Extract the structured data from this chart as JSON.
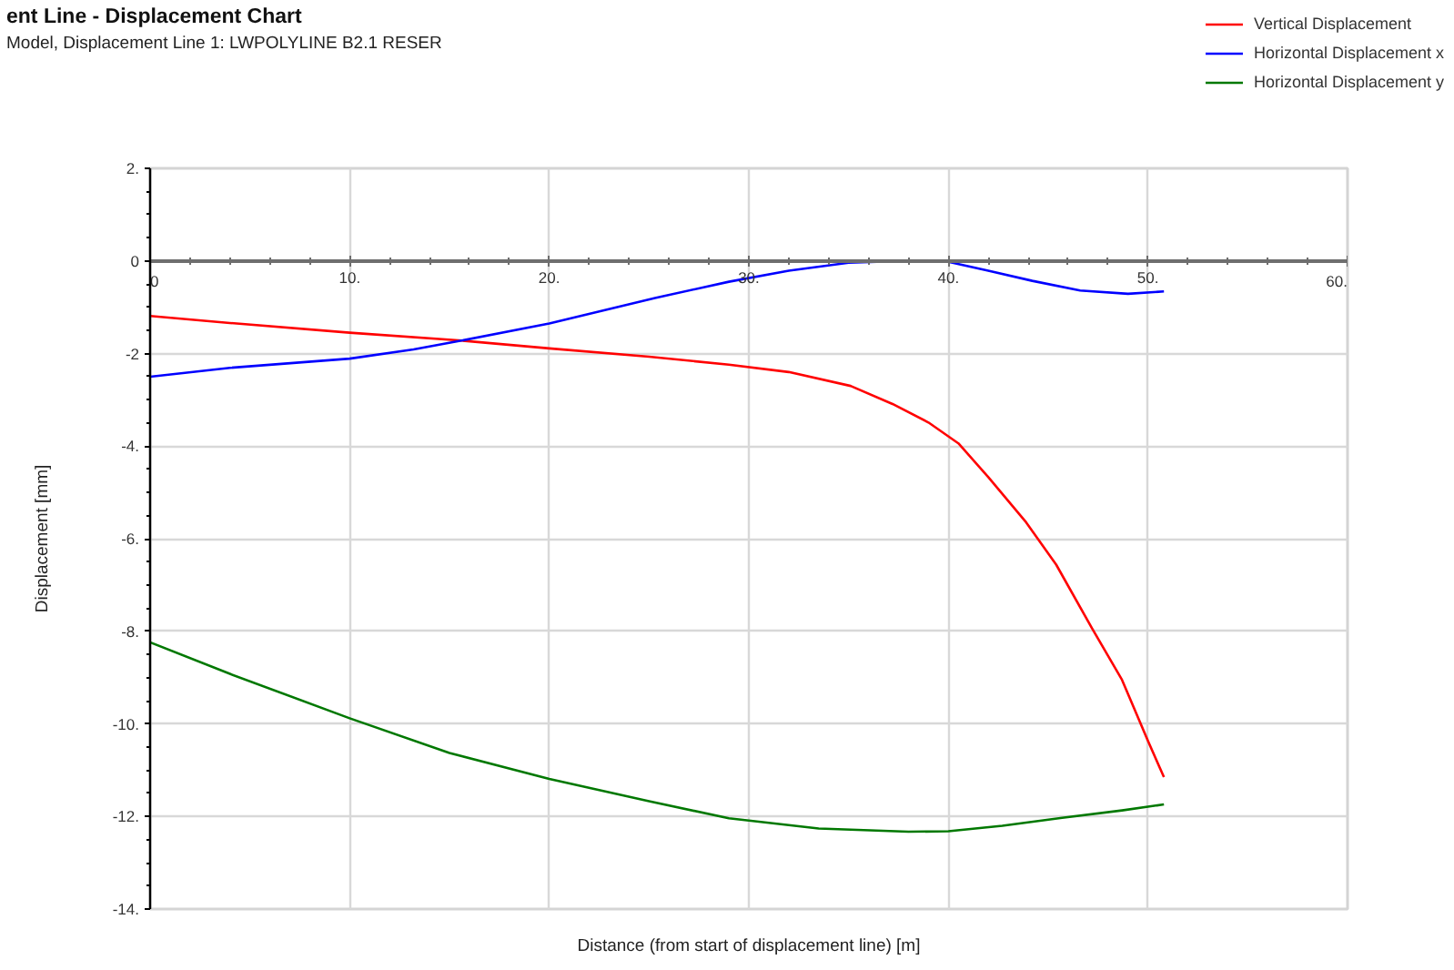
{
  "chart_data": {
    "type": "line",
    "title": "ent Line - Displacement Chart",
    "subtitle": "Model, Displacement Line 1: LWPOLYLINE B2.1 RESER",
    "xlabel": "Distance (from start of displacement line) [m]",
    "ylabel": "Displacement [mm]",
    "xlim": [
      0,
      60
    ],
    "ylim": [
      -14,
      2
    ],
    "xticks": [
      0,
      {
        "value": 2,
        "label": null
      },
      {
        "value": 4,
        "label": null
      },
      {
        "value": 6,
        "label": null
      },
      {
        "value": 8,
        "label": null
      },
      {
        "value": 10,
        "label": "10."
      },
      {
        "value": 12,
        "label": null
      },
      {
        "value": 14,
        "label": null
      },
      {
        "value": 16,
        "label": null
      },
      {
        "value": 18,
        "label": null
      },
      {
        "value": 20,
        "label": "20."
      },
      {
        "value": 22,
        "label": null
      },
      {
        "value": 24,
        "label": null
      },
      {
        "value": 26,
        "label": null
      },
      {
        "value": 28,
        "label": null
      },
      {
        "value": 30,
        "label": "30."
      },
      {
        "value": 32,
        "label": null
      },
      {
        "value": 34,
        "label": null
      },
      {
        "value": 36,
        "label": null
      },
      {
        "value": 38,
        "label": null
      },
      {
        "value": 40,
        "label": "40."
      },
      {
        "value": 42,
        "label": null
      },
      {
        "value": 44,
        "label": null
      },
      {
        "value": 46,
        "label": null
      },
      {
        "value": 48,
        "label": null
      },
      {
        "value": 50,
        "label": "50."
      },
      {
        "value": 52,
        "label": null
      },
      {
        "value": 54,
        "label": null
      },
      {
        "value": 56,
        "label": null
      },
      {
        "value": 58,
        "label": null
      },
      {
        "value": 60,
        "label": "60."
      }
    ],
    "yticks": [
      {
        "value": -14,
        "label": "-14."
      },
      {
        "value": -13.5,
        "label": null
      },
      {
        "value": -13,
        "label": null
      },
      {
        "value": -12.5,
        "label": null
      },
      {
        "value": -12,
        "label": "-12."
      },
      {
        "value": -11.5,
        "label": null
      },
      {
        "value": -11,
        "label": null
      },
      {
        "value": -10.5,
        "label": null
      },
      {
        "value": -10,
        "label": "-10."
      },
      {
        "value": -9.5,
        "label": null
      },
      {
        "value": -9,
        "label": null
      },
      {
        "value": -8.5,
        "label": null
      },
      {
        "value": -8,
        "label": "-8."
      },
      {
        "value": -7.5,
        "label": null
      },
      {
        "value": -7,
        "label": null
      },
      {
        "value": -6.5,
        "label": null
      },
      {
        "value": -6,
        "label": "-6."
      },
      {
        "value": -5.5,
        "label": null
      },
      {
        "value": -5,
        "label": null
      },
      {
        "value": -4.5,
        "label": null
      },
      {
        "value": -4,
        "label": "-4."
      },
      {
        "value": -3.5,
        "label": null
      },
      {
        "value": -3,
        "label": null
      },
      {
        "value": -2.5,
        "label": null
      },
      -2,
      {
        "value": -1.5,
        "label": null
      },
      {
        "value": -1,
        "label": null
      },
      {
        "value": -0.5,
        "label": null
      },
      0,
      {
        "value": 0.5,
        "label": null
      },
      {
        "value": 1,
        "label": null
      },
      {
        "value": 1.5,
        "label": null
      },
      {
        "value": 2,
        "label": "2."
      }
    ],
    "grid": true,
    "legend": "top right",
    "line_style": "solid",
    "series": [
      {
        "name": "Vertical Displacement",
        "color": "#ff0000",
        "x": [
          0,
          4,
          10,
          15.6,
          20,
          25,
          29,
          32,
          35.1,
          37.2,
          39,
          40.5,
          42,
          43.9,
          45.4,
          47.2,
          48.7,
          50,
          50.8
        ],
        "values": [
          -1.19,
          -1.34,
          -1.55,
          -1.72,
          -1.89,
          -2.07,
          -2.24,
          -2.4,
          -2.7,
          -3.09,
          -3.49,
          -3.94,
          -4.67,
          -5.65,
          -6.56,
          -7.94,
          -9.05,
          -10.37,
          -11.15
        ]
      },
      {
        "name": "Horizontal Displacement x",
        "color": "#0000ff",
        "x": [
          0,
          4,
          10,
          13.2,
          15.6,
          20,
          25.3,
          29,
          32,
          35,
          37.8,
          39.9,
          42,
          44.2,
          46.6,
          49,
          50.8
        ],
        "values": [
          -2.5,
          -2.31,
          -2.11,
          -1.91,
          -1.72,
          -1.35,
          -0.8,
          -0.45,
          -0.21,
          -0.04,
          0.0,
          -0.01,
          -0.21,
          -0.43,
          -0.64,
          -0.71,
          -0.66
        ]
      },
      {
        "name": "Horizontal Displacement y",
        "color": "#007800",
        "x": [
          0,
          4,
          10,
          15,
          20,
          25,
          29,
          33.5,
          38,
          40,
          42.7,
          45.7,
          48.7,
          50.8
        ],
        "values": [
          -8.24,
          -8.92,
          -9.88,
          -10.63,
          -11.19,
          -11.67,
          -12.04,
          -12.26,
          -12.33,
          -12.32,
          -12.2,
          -12.03,
          -11.87,
          -11.74
        ]
      }
    ]
  }
}
